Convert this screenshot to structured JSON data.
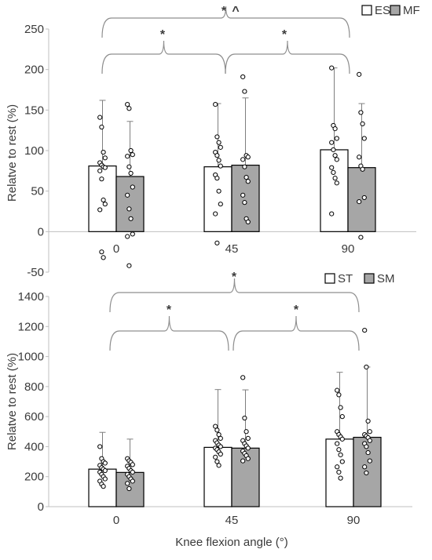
{
  "chart_data": [
    {
      "type": "bar",
      "title": "",
      "xlabel": "",
      "ylabel": "Relatve to rest (%)",
      "ylim": [
        -50,
        250
      ],
      "yticks": [
        -50,
        0,
        50,
        100,
        150,
        200,
        250
      ],
      "categories": [
        "0",
        "45",
        "90"
      ],
      "grid": false,
      "legend_position": "top-right",
      "series": [
        {
          "name": "ES",
          "color": "#ffffff",
          "values": [
            81,
            80,
            101
          ],
          "error_upper": [
            162,
            158,
            202
          ],
          "points": [
            [
              141,
              129,
              98,
              91,
              85,
              82,
              80,
              79,
              75,
              65,
              39,
              34,
              27,
              -25,
              -32
            ],
            [
              157,
              117,
              110,
              104,
              98,
              94,
              88,
              81,
              70,
              66,
              50,
              34,
              22,
              -14
            ],
            [
              202,
              131,
              127,
              115,
              110,
              101,
              94,
              89,
              79,
              73,
              66,
              60,
              22
            ]
          ]
        },
        {
          "name": "MF",
          "color": "#a6a6a6",
          "values": [
            68,
            82,
            79
          ],
          "error_upper": [
            136,
            165,
            158
          ],
          "points": [
            [
              157,
              152,
              100,
              95,
              93,
              80,
              72,
              55,
              45,
              28,
              16,
              -3,
              -6,
              -42
            ],
            [
              191,
              173,
              94,
              92,
              89,
              80,
              67,
              62,
              45,
              36,
              16,
              12
            ],
            [
              194,
              147,
              133,
              115,
              92,
              81,
              77,
              42,
              37,
              -7
            ]
          ]
        }
      ],
      "annotations": [
        {
          "text": "*",
          "comparison": "0 vs 45"
        },
        {
          "text": "*",
          "comparison": "45 vs 90"
        },
        {
          "text": "*",
          "comparison": "0 vs 90"
        },
        {
          "text": "^",
          "comparison": "0 vs 90"
        }
      ]
    },
    {
      "type": "bar",
      "title": "",
      "xlabel": "Knee flexion angle (°)",
      "ylabel": "Relatve to rest (%)",
      "ylim": [
        0,
        1400
      ],
      "yticks": [
        0,
        200,
        400,
        600,
        800,
        1000,
        1200,
        1400
      ],
      "categories": [
        "0",
        "45",
        "90"
      ],
      "grid": false,
      "legend_position": "top-right",
      "series": [
        {
          "name": "ST",
          "color": "#ffffff",
          "values": [
            250,
            395,
            450
          ],
          "error_upper": [
            495,
            780,
            895
          ],
          "points": [
            [
              400,
              320,
              300,
              290,
              275,
              260,
              250,
              240,
              230,
              215,
              200,
              185,
              170,
              150,
              135
            ],
            [
              535,
              510,
              480,
              455,
              440,
              425,
              410,
              400,
              390,
              380,
              365,
              350,
              330,
              300,
              275
            ],
            [
              775,
              745,
              660,
              600,
              500,
              480,
              465,
              450,
              420,
              380,
              345,
              300,
              265,
              230,
              190
            ]
          ]
        },
        {
          "name": "SM",
          "color": "#a6a6a6",
          "values": [
            228,
            390,
            462
          ],
          "error_upper": [
            450,
            778,
            930
          ],
          "points": [
            [
              320,
              305,
              295,
              280,
              270,
              255,
              240,
              230,
              215,
              200,
              185,
              170,
              155,
              120
            ],
            [
              860,
              590,
              500,
              455,
              440,
              420,
              405,
              390,
              370,
              355,
              340,
              320,
              305
            ],
            [
              1175,
              930,
              570,
              500,
              480,
              470,
              460,
              440,
              420,
              400,
              360,
              305,
              265,
              225
            ]
          ]
        }
      ],
      "annotations": [
        {
          "text": "*",
          "comparison": "0 vs 45"
        },
        {
          "text": "*",
          "comparison": "45 vs 90"
        },
        {
          "text": "*",
          "comparison": "0 vs 90"
        }
      ]
    }
  ]
}
